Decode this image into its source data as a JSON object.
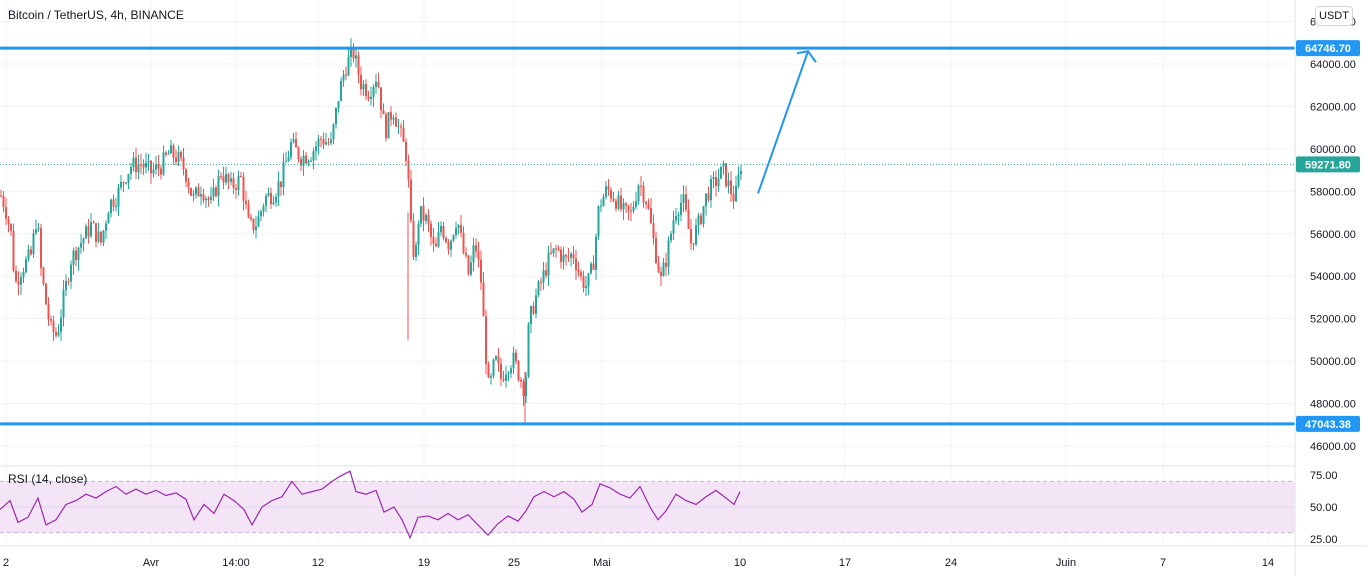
{
  "header": {
    "title": "Bitcoin / TetherUS, 4h, BINANCE",
    "currency": "USDT"
  },
  "rsi_panel": {
    "label": "RSI (14, close)"
  },
  "colors": {
    "up": "#26a69a",
    "down": "#ef5350",
    "level_line": "#2196f3",
    "last_price": "#26a69a",
    "rsi_line": "#9c27b0",
    "rsi_band": "#f3e5f5"
  },
  "chart_data": [
    {
      "type": "candlestick",
      "symbol": "Bitcoin / TetherUS",
      "interval": "4h",
      "exchange": "BINANCE",
      "y_axis_labels": [
        "46000.00",
        "48000.00",
        "50000.00",
        "52000.00",
        "54000.00",
        "56000.00",
        "58000.00",
        "60000.00",
        "62000.00",
        "64000.00",
        "66000.00"
      ],
      "x_axis_labels": [
        "2",
        "Avr",
        "14:00",
        "12",
        "19",
        "25",
        "Mai",
        "10",
        "17",
        "24",
        "Juin",
        "7",
        "14"
      ],
      "ylim": [
        45200,
        66600
      ],
      "horizontal_levels": [
        {
          "value": 64746.7,
          "label": "64746.70"
        },
        {
          "value": 47043.38,
          "label": "47043.38"
        }
      ],
      "last_price": {
        "value": 59271.8,
        "label": "59271.80"
      },
      "arrow": {
        "from_price": 57900,
        "to_price": 64600
      },
      "close_path": [
        {
          "t": 0,
          "p": 57800
        },
        {
          "t": 4,
          "p": 57300
        },
        {
          "t": 10,
          "p": 56000
        },
        {
          "t": 14,
          "p": 53600
        },
        {
          "t": 20,
          "p": 54300
        },
        {
          "t": 30,
          "p": 55000
        },
        {
          "t": 36,
          "p": 56900
        },
        {
          "t": 40,
          "p": 54300
        },
        {
          "t": 46,
          "p": 52400
        },
        {
          "t": 50,
          "p": 51500
        },
        {
          "t": 56,
          "p": 51200
        },
        {
          "t": 62,
          "p": 52800
        },
        {
          "t": 70,
          "p": 54800
        },
        {
          "t": 80,
          "p": 55600
        },
        {
          "t": 90,
          "p": 56400
        },
        {
          "t": 100,
          "p": 55600
        },
        {
          "t": 108,
          "p": 57400
        },
        {
          "t": 116,
          "p": 57800
        },
        {
          "t": 124,
          "p": 58700
        },
        {
          "t": 130,
          "p": 59200
        },
        {
          "t": 140,
          "p": 59300
        },
        {
          "t": 150,
          "p": 58900
        },
        {
          "t": 160,
          "p": 59200
        },
        {
          "t": 168,
          "p": 59800
        },
        {
          "t": 176,
          "p": 59600
        },
        {
          "t": 184,
          "p": 59000
        },
        {
          "t": 192,
          "p": 57600
        },
        {
          "t": 200,
          "p": 58200
        },
        {
          "t": 210,
          "p": 57400
        },
        {
          "t": 220,
          "p": 58900
        },
        {
          "t": 230,
          "p": 58200
        },
        {
          "t": 240,
          "p": 58600
        },
        {
          "t": 248,
          "p": 56300
        },
        {
          "t": 256,
          "p": 56500
        },
        {
          "t": 264,
          "p": 57700
        },
        {
          "t": 272,
          "p": 57900
        },
        {
          "t": 280,
          "p": 58500
        },
        {
          "t": 290,
          "p": 60200
        },
        {
          "t": 300,
          "p": 59600
        },
        {
          "t": 310,
          "p": 59800
        },
        {
          "t": 320,
          "p": 60500
        },
        {
          "t": 330,
          "p": 60200
        },
        {
          "t": 338,
          "p": 62600
        },
        {
          "t": 344,
          "p": 63800
        },
        {
          "t": 352,
          "p": 64600
        },
        {
          "t": 360,
          "p": 63100
        },
        {
          "t": 368,
          "p": 62700
        },
        {
          "t": 376,
          "p": 63500
        },
        {
          "t": 384,
          "p": 60800
        },
        {
          "t": 392,
          "p": 61900
        },
        {
          "t": 400,
          "p": 60600
        },
        {
          "t": 406,
          "p": 59600
        },
        {
          "t": 410,
          "p": 56200
        },
        {
          "t": 414,
          "p": 54600
        },
        {
          "t": 418,
          "p": 57000
        },
        {
          "t": 426,
          "p": 56600
        },
        {
          "t": 434,
          "p": 55000
        },
        {
          "t": 440,
          "p": 56400
        },
        {
          "t": 448,
          "p": 55500
        },
        {
          "t": 456,
          "p": 56800
        },
        {
          "t": 462,
          "p": 55200
        },
        {
          "t": 468,
          "p": 54000
        },
        {
          "t": 474,
          "p": 55600
        },
        {
          "t": 480,
          "p": 53800
        },
        {
          "t": 484,
          "p": 50800
        },
        {
          "t": 488,
          "p": 48500
        },
        {
          "t": 494,
          "p": 50100
        },
        {
          "t": 500,
          "p": 49200
        },
        {
          "t": 506,
          "p": 49800
        },
        {
          "t": 512,
          "p": 50100
        },
        {
          "t": 518,
          "p": 49400
        },
        {
          "t": 524,
          "p": 48600
        },
        {
          "t": 528,
          "p": 51800
        },
        {
          "t": 534,
          "p": 52900
        },
        {
          "t": 540,
          "p": 53700
        },
        {
          "t": 548,
          "p": 54800
        },
        {
          "t": 556,
          "p": 55300
        },
        {
          "t": 564,
          "p": 54700
        },
        {
          "t": 572,
          "p": 55100
        },
        {
          "t": 580,
          "p": 53900
        },
        {
          "t": 586,
          "p": 53500
        },
        {
          "t": 592,
          "p": 54500
        },
        {
          "t": 598,
          "p": 57300
        },
        {
          "t": 606,
          "p": 58100
        },
        {
          "t": 614,
          "p": 57700
        },
        {
          "t": 622,
          "p": 57000
        },
        {
          "t": 630,
          "p": 56900
        },
        {
          "t": 638,
          "p": 58500
        },
        {
          "t": 646,
          "p": 57500
        },
        {
          "t": 652,
          "p": 55800
        },
        {
          "t": 660,
          "p": 53800
        },
        {
          "t": 666,
          "p": 55000
        },
        {
          "t": 674,
          "p": 57100
        },
        {
          "t": 682,
          "p": 57600
        },
        {
          "t": 690,
          "p": 55600
        },
        {
          "t": 698,
          "p": 56500
        },
        {
          "t": 706,
          "p": 57900
        },
        {
          "t": 714,
          "p": 58400
        },
        {
          "t": 722,
          "p": 59000
        },
        {
          "t": 728,
          "p": 58200
        },
        {
          "t": 734,
          "p": 57600
        },
        {
          "t": 740,
          "p": 59271
        }
      ],
      "rsi": {
        "label": "RSI (14, close)",
        "y_axis_labels": [
          "25.00",
          "50.00",
          "75.00"
        ],
        "band": [
          30,
          70
        ],
        "ylim": [
          20,
          82
        ],
        "points": [
          {
            "t": 0,
            "v": 48
          },
          {
            "t": 10,
            "v": 55
          },
          {
            "t": 18,
            "v": 38
          },
          {
            "t": 28,
            "v": 42
          },
          {
            "t": 38,
            "v": 57
          },
          {
            "t": 46,
            "v": 36
          },
          {
            "t": 56,
            "v": 40
          },
          {
            "t": 66,
            "v": 52
          },
          {
            "t": 76,
            "v": 55
          },
          {
            "t": 86,
            "v": 60
          },
          {
            "t": 96,
            "v": 57
          },
          {
            "t": 106,
            "v": 62
          },
          {
            "t": 116,
            "v": 66
          },
          {
            "t": 126,
            "v": 60
          },
          {
            "t": 136,
            "v": 64
          },
          {
            "t": 146,
            "v": 60
          },
          {
            "t": 156,
            "v": 63
          },
          {
            "t": 166,
            "v": 59
          },
          {
            "t": 176,
            "v": 61
          },
          {
            "t": 186,
            "v": 56
          },
          {
            "t": 194,
            "v": 40
          },
          {
            "t": 204,
            "v": 52
          },
          {
            "t": 214,
            "v": 45
          },
          {
            "t": 224,
            "v": 60
          },
          {
            "t": 234,
            "v": 55
          },
          {
            "t": 244,
            "v": 48
          },
          {
            "t": 252,
            "v": 36
          },
          {
            "t": 262,
            "v": 50
          },
          {
            "t": 272,
            "v": 55
          },
          {
            "t": 282,
            "v": 58
          },
          {
            "t": 292,
            "v": 70
          },
          {
            "t": 302,
            "v": 60
          },
          {
            "t": 312,
            "v": 62
          },
          {
            "t": 322,
            "v": 64
          },
          {
            "t": 332,
            "v": 70
          },
          {
            "t": 340,
            "v": 74
          },
          {
            "t": 350,
            "v": 78
          },
          {
            "t": 356,
            "v": 62
          },
          {
            "t": 366,
            "v": 60
          },
          {
            "t": 376,
            "v": 63
          },
          {
            "t": 384,
            "v": 46
          },
          {
            "t": 394,
            "v": 50
          },
          {
            "t": 402,
            "v": 40
          },
          {
            "t": 410,
            "v": 26
          },
          {
            "t": 418,
            "v": 42
          },
          {
            "t": 428,
            "v": 43
          },
          {
            "t": 438,
            "v": 40
          },
          {
            "t": 448,
            "v": 45
          },
          {
            "t": 458,
            "v": 40
          },
          {
            "t": 468,
            "v": 44
          },
          {
            "t": 478,
            "v": 36
          },
          {
            "t": 488,
            "v": 28
          },
          {
            "t": 498,
            "v": 37
          },
          {
            "t": 508,
            "v": 43
          },
          {
            "t": 518,
            "v": 39
          },
          {
            "t": 526,
            "v": 47
          },
          {
            "t": 534,
            "v": 58
          },
          {
            "t": 544,
            "v": 62
          },
          {
            "t": 554,
            "v": 58
          },
          {
            "t": 564,
            "v": 62
          },
          {
            "t": 574,
            "v": 56
          },
          {
            "t": 582,
            "v": 46
          },
          {
            "t": 592,
            "v": 52
          },
          {
            "t": 600,
            "v": 68
          },
          {
            "t": 610,
            "v": 65
          },
          {
            "t": 620,
            "v": 60
          },
          {
            "t": 630,
            "v": 57
          },
          {
            "t": 640,
            "v": 66
          },
          {
            "t": 650,
            "v": 50
          },
          {
            "t": 658,
            "v": 40
          },
          {
            "t": 666,
            "v": 47
          },
          {
            "t": 676,
            "v": 60
          },
          {
            "t": 686,
            "v": 55
          },
          {
            "t": 696,
            "v": 52
          },
          {
            "t": 706,
            "v": 58
          },
          {
            "t": 716,
            "v": 63
          },
          {
            "t": 726,
            "v": 57
          },
          {
            "t": 734,
            "v": 52
          },
          {
            "t": 740,
            "v": 62
          }
        ]
      }
    }
  ]
}
